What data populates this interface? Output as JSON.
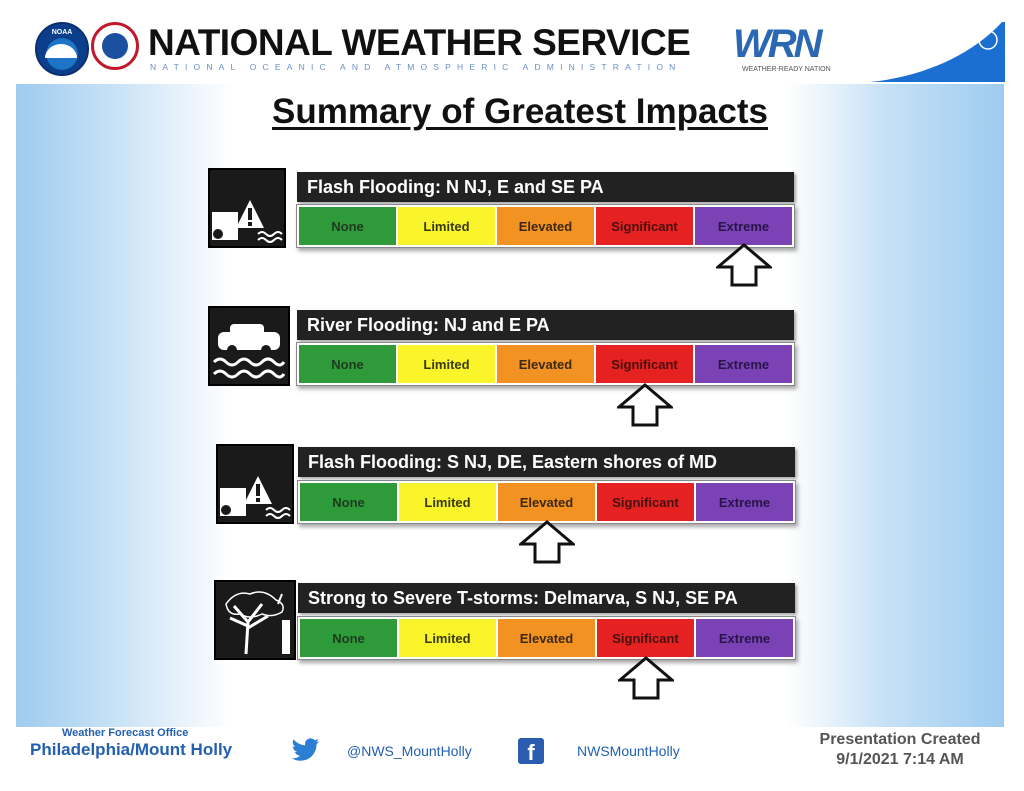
{
  "header": {
    "noaa_logo_text": "NOAA",
    "title": "NATIONAL WEATHER SERVICE",
    "subtitle": "NATIONAL OCEANIC AND ATMOSPHERIC ADMINISTRATION",
    "wrn_logo": "WRN",
    "wrn_tagline": "WEATHER-READY NATION"
  },
  "slide": {
    "title": "Summary of Greatest Impacts"
  },
  "scale_levels": [
    "None",
    "Limited",
    "Elevated",
    "Significant",
    "Extreme"
  ],
  "colors": {
    "none": "#2f9a3a",
    "limited": "#f9f52a",
    "elevated": "#f29222",
    "significant": "#e62121",
    "extreme": "#7a42b5"
  },
  "impacts": [
    {
      "hazard": "Flash Flooding: N NJ, E and SE PA",
      "icon": "flash-flood-icon",
      "level": "Extreme",
      "level_index": 4
    },
    {
      "hazard": "River Flooding: NJ and E PA",
      "icon": "river-flood-icon",
      "level": "Significant",
      "level_index": 3
    },
    {
      "hazard": "Flash Flooding: S NJ, DE, Eastern shores of MD",
      "icon": "flash-flood-icon",
      "level": "Elevated",
      "level_index": 2
    },
    {
      "hazard": "Strong to Severe T-storms: Delmarva, S NJ, SE PA",
      "icon": "thunderstorm-wind-icon",
      "level": "Significant",
      "level_index": 3
    }
  ],
  "footer": {
    "office_label": "Weather Forecast Office",
    "office_name": "Philadelphia/Mount Holly",
    "twitter_handle": "@NWS_MountHolly",
    "facebook_handle": "NWSMountHolly",
    "created_label": "Presentation Created",
    "created_date": "9/1/2021 7:14 AM"
  }
}
